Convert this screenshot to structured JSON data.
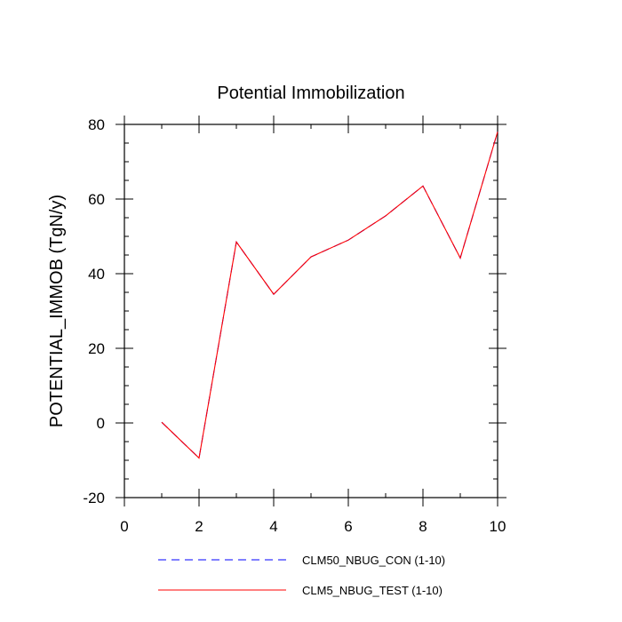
{
  "chart_data": {
    "type": "line",
    "title": "Potential Immobilization",
    "xlabel": "",
    "ylabel": "POTENTIAL_IMMOB  (TgN/y)",
    "xlim": [
      0,
      10
    ],
    "ylim": [
      -20,
      80
    ],
    "x_ticks": [
      "0",
      "2",
      "4",
      "6",
      "8",
      "10"
    ],
    "y_ticks": [
      "-20",
      "0",
      "20",
      "40",
      "60",
      "80"
    ],
    "x": [
      1,
      2,
      3,
      4,
      5,
      6,
      7,
      8,
      9,
      10
    ],
    "series": [
      {
        "name": "CLM50_NBUG_CON (1-10)",
        "color": "#0000ff",
        "dash": "dashed",
        "values": [
          0.2,
          -9.4,
          48.5,
          34.5,
          44.5,
          49.0,
          55.5,
          63.5,
          44.2,
          78.0
        ]
      },
      {
        "name": "CLM5_NBUG_TEST (1-10)",
        "color": "#ff0000",
        "dash": "solid",
        "values": [
          0.2,
          -9.4,
          48.5,
          34.5,
          44.5,
          49.0,
          55.5,
          63.5,
          44.2,
          78.0
        ]
      }
    ],
    "grid": false,
    "legend_position": "bottom"
  }
}
